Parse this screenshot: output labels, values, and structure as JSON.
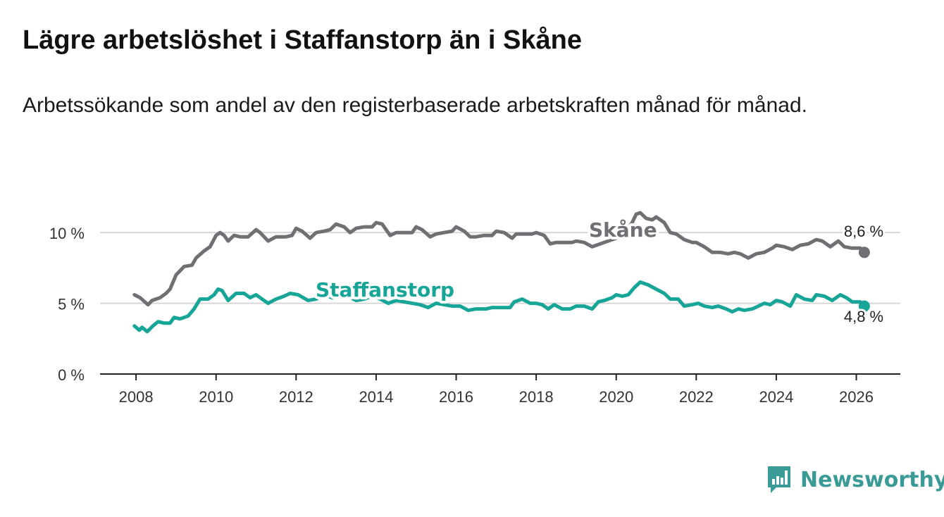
{
  "title": "Lägre arbetslöshet i Staffanstorp än i Skåne",
  "subtitle": "Arbetssökande som andel av den registerbaserade arbetskraften månad för månad.",
  "brand": "Newsworthy",
  "colors": {
    "skane": "#6f6f74",
    "staffanstorp": "#16a596",
    "grid": "#d6d6d6",
    "axis": "#222222",
    "brand": "#3a9a95"
  },
  "chart_data": {
    "type": "line",
    "title": "Lägre arbetslöshet i Staffanstorp än i Skåne",
    "xlabel": "",
    "ylabel": "",
    "xlim": [
      2007.1,
      2027.1
    ],
    "ylim": [
      0,
      12
    ],
    "y_ticks": [
      0,
      5,
      10
    ],
    "y_tick_labels": [
      "0 %",
      "5 %",
      "10 %"
    ],
    "x_ticks": [
      2008,
      2010,
      2012,
      2014,
      2016,
      2018,
      2020,
      2022,
      2024,
      2026
    ],
    "x_tick_labels": [
      "2008",
      "2010",
      "2012",
      "2014",
      "2016",
      "2018",
      "2020",
      "2022",
      "2024",
      "2026"
    ],
    "series": [
      {
        "name": "Skåne",
        "label": "Skåne",
        "end_label": "8,6 %",
        "points": [
          [
            2007.96,
            5.6
          ],
          [
            2008.1,
            5.4
          ],
          [
            2008.3,
            4.9
          ],
          [
            2008.4,
            5.2
          ],
          [
            2008.6,
            5.4
          ],
          [
            2008.75,
            5.7
          ],
          [
            2008.85,
            6.0
          ],
          [
            2009.0,
            7.0
          ],
          [
            2009.2,
            7.6
          ],
          [
            2009.4,
            7.7
          ],
          [
            2009.5,
            8.2
          ],
          [
            2009.7,
            8.7
          ],
          [
            2009.85,
            9.0
          ],
          [
            2010.0,
            9.8
          ],
          [
            2010.1,
            10.0
          ],
          [
            2010.2,
            9.8
          ],
          [
            2010.3,
            9.4
          ],
          [
            2010.45,
            9.8
          ],
          [
            2010.6,
            9.7
          ],
          [
            2010.8,
            9.7
          ],
          [
            2011.0,
            10.2
          ],
          [
            2011.1,
            10.0
          ],
          [
            2011.3,
            9.4
          ],
          [
            2011.5,
            9.7
          ],
          [
            2011.75,
            9.7
          ],
          [
            2011.9,
            9.8
          ],
          [
            2012.0,
            10.3
          ],
          [
            2012.15,
            10.1
          ],
          [
            2012.35,
            9.6
          ],
          [
            2012.5,
            10.0
          ],
          [
            2012.7,
            10.1
          ],
          [
            2012.85,
            10.2
          ],
          [
            2013.0,
            10.6
          ],
          [
            2013.2,
            10.4
          ],
          [
            2013.35,
            10.0
          ],
          [
            2013.5,
            10.3
          ],
          [
            2013.7,
            10.4
          ],
          [
            2013.9,
            10.4
          ],
          [
            2014.0,
            10.7
          ],
          [
            2014.15,
            10.6
          ],
          [
            2014.35,
            9.8
          ],
          [
            2014.5,
            10.0
          ],
          [
            2014.7,
            10.0
          ],
          [
            2014.9,
            10.0
          ],
          [
            2015.0,
            10.4
          ],
          [
            2015.15,
            10.2
          ],
          [
            2015.35,
            9.7
          ],
          [
            2015.5,
            9.9
          ],
          [
            2015.7,
            10.0
          ],
          [
            2015.9,
            10.1
          ],
          [
            2016.0,
            10.4
          ],
          [
            2016.2,
            10.1
          ],
          [
            2016.35,
            9.7
          ],
          [
            2016.5,
            9.7
          ],
          [
            2016.7,
            9.8
          ],
          [
            2016.9,
            9.8
          ],
          [
            2017.0,
            10.1
          ],
          [
            2017.2,
            10.0
          ],
          [
            2017.4,
            9.6
          ],
          [
            2017.5,
            9.9
          ],
          [
            2017.7,
            9.9
          ],
          [
            2017.9,
            9.9
          ],
          [
            2018.0,
            10.0
          ],
          [
            2018.2,
            9.8
          ],
          [
            2018.35,
            9.2
          ],
          [
            2018.5,
            9.3
          ],
          [
            2018.7,
            9.3
          ],
          [
            2018.9,
            9.3
          ],
          [
            2019.0,
            9.4
          ],
          [
            2019.2,
            9.3
          ],
          [
            2019.4,
            9.0
          ],
          [
            2019.6,
            9.2
          ],
          [
            2019.8,
            9.4
          ],
          [
            2020.0,
            9.6
          ],
          [
            2020.2,
            10.0
          ],
          [
            2020.4,
            10.7
          ],
          [
            2020.5,
            11.3
          ],
          [
            2020.6,
            11.4
          ],
          [
            2020.75,
            11.0
          ],
          [
            2020.9,
            10.9
          ],
          [
            2021.0,
            11.1
          ],
          [
            2021.2,
            10.7
          ],
          [
            2021.35,
            10.0
          ],
          [
            2021.5,
            9.9
          ],
          [
            2021.7,
            9.5
          ],
          [
            2021.9,
            9.3
          ],
          [
            2022.0,
            9.3
          ],
          [
            2022.2,
            9.0
          ],
          [
            2022.4,
            8.6
          ],
          [
            2022.6,
            8.6
          ],
          [
            2022.8,
            8.5
          ],
          [
            2022.95,
            8.6
          ],
          [
            2023.1,
            8.5
          ],
          [
            2023.3,
            8.2
          ],
          [
            2023.5,
            8.5
          ],
          [
            2023.7,
            8.6
          ],
          [
            2023.9,
            8.9
          ],
          [
            2024.0,
            9.1
          ],
          [
            2024.2,
            9.0
          ],
          [
            2024.4,
            8.8
          ],
          [
            2024.6,
            9.1
          ],
          [
            2024.8,
            9.2
          ],
          [
            2025.0,
            9.5
          ],
          [
            2025.15,
            9.4
          ],
          [
            2025.35,
            9.0
          ],
          [
            2025.55,
            9.4
          ],
          [
            2025.7,
            9.0
          ],
          [
            2025.9,
            8.9
          ],
          [
            2026.1,
            8.9
          ],
          [
            2026.2,
            8.6
          ]
        ]
      },
      {
        "name": "Staffanstorp",
        "label": "Staffanstorp",
        "end_label": "4,8 %",
        "points": [
          [
            2007.96,
            3.4
          ],
          [
            2008.08,
            3.1
          ],
          [
            2008.15,
            3.3
          ],
          [
            2008.28,
            3.0
          ],
          [
            2008.42,
            3.4
          ],
          [
            2008.55,
            3.7
          ],
          [
            2008.7,
            3.6
          ],
          [
            2008.85,
            3.6
          ],
          [
            2008.95,
            4.0
          ],
          [
            2009.1,
            3.9
          ],
          [
            2009.3,
            4.1
          ],
          [
            2009.45,
            4.6
          ],
          [
            2009.6,
            5.3
          ],
          [
            2009.8,
            5.3
          ],
          [
            2009.95,
            5.6
          ],
          [
            2010.05,
            6.0
          ],
          [
            2010.15,
            5.9
          ],
          [
            2010.3,
            5.2
          ],
          [
            2010.5,
            5.7
          ],
          [
            2010.7,
            5.7
          ],
          [
            2010.85,
            5.4
          ],
          [
            2011.0,
            5.6
          ],
          [
            2011.15,
            5.3
          ],
          [
            2011.3,
            5.0
          ],
          [
            2011.5,
            5.3
          ],
          [
            2011.7,
            5.5
          ],
          [
            2011.85,
            5.7
          ],
          [
            2012.05,
            5.6
          ],
          [
            2012.3,
            5.2
          ],
          [
            2012.5,
            5.3
          ],
          [
            2012.7,
            5.6
          ],
          [
            2012.9,
            5.4
          ],
          [
            2013.1,
            5.6
          ],
          [
            2013.3,
            5.5
          ],
          [
            2013.5,
            5.2
          ],
          [
            2013.7,
            5.3
          ],
          [
            2013.9,
            5.5
          ],
          [
            2014.1,
            5.3
          ],
          [
            2014.3,
            5.0
          ],
          [
            2014.5,
            5.2
          ],
          [
            2014.7,
            5.1
          ],
          [
            2014.9,
            5.0
          ],
          [
            2015.1,
            4.9
          ],
          [
            2015.3,
            4.7
          ],
          [
            2015.5,
            5.0
          ],
          [
            2015.7,
            4.9
          ],
          [
            2015.9,
            4.8
          ],
          [
            2016.1,
            4.8
          ],
          [
            2016.3,
            4.5
          ],
          [
            2016.5,
            4.6
          ],
          [
            2016.75,
            4.6
          ],
          [
            2016.9,
            4.7
          ],
          [
            2017.05,
            4.7
          ],
          [
            2017.2,
            4.7
          ],
          [
            2017.35,
            4.7
          ],
          [
            2017.45,
            5.1
          ],
          [
            2017.65,
            5.3
          ],
          [
            2017.85,
            5.0
          ],
          [
            2018.0,
            5.0
          ],
          [
            2018.15,
            4.9
          ],
          [
            2018.3,
            4.6
          ],
          [
            2018.45,
            4.9
          ],
          [
            2018.65,
            4.6
          ],
          [
            2018.85,
            4.6
          ],
          [
            2019.0,
            4.8
          ],
          [
            2019.2,
            4.8
          ],
          [
            2019.4,
            4.6
          ],
          [
            2019.55,
            5.1
          ],
          [
            2019.7,
            5.2
          ],
          [
            2019.9,
            5.4
          ],
          [
            2020.0,
            5.6
          ],
          [
            2020.15,
            5.5
          ],
          [
            2020.3,
            5.6
          ],
          [
            2020.45,
            6.1
          ],
          [
            2020.6,
            6.5
          ],
          [
            2020.8,
            6.3
          ],
          [
            2021.0,
            6.0
          ],
          [
            2021.2,
            5.7
          ],
          [
            2021.35,
            5.3
          ],
          [
            2021.55,
            5.3
          ],
          [
            2021.7,
            4.8
          ],
          [
            2021.9,
            4.9
          ],
          [
            2022.05,
            5.0
          ],
          [
            2022.2,
            4.8
          ],
          [
            2022.4,
            4.7
          ],
          [
            2022.55,
            4.8
          ],
          [
            2022.75,
            4.6
          ],
          [
            2022.9,
            4.4
          ],
          [
            2023.05,
            4.6
          ],
          [
            2023.2,
            4.5
          ],
          [
            2023.4,
            4.6
          ],
          [
            2023.55,
            4.8
          ],
          [
            2023.7,
            5.0
          ],
          [
            2023.85,
            4.9
          ],
          [
            2024.0,
            5.2
          ],
          [
            2024.15,
            5.1
          ],
          [
            2024.35,
            4.8
          ],
          [
            2024.5,
            5.6
          ],
          [
            2024.7,
            5.3
          ],
          [
            2024.9,
            5.2
          ],
          [
            2025.0,
            5.6
          ],
          [
            2025.2,
            5.5
          ],
          [
            2025.4,
            5.2
          ],
          [
            2025.6,
            5.6
          ],
          [
            2025.75,
            5.4
          ],
          [
            2025.9,
            5.1
          ],
          [
            2026.1,
            5.1
          ],
          [
            2026.2,
            4.8
          ]
        ]
      }
    ]
  }
}
